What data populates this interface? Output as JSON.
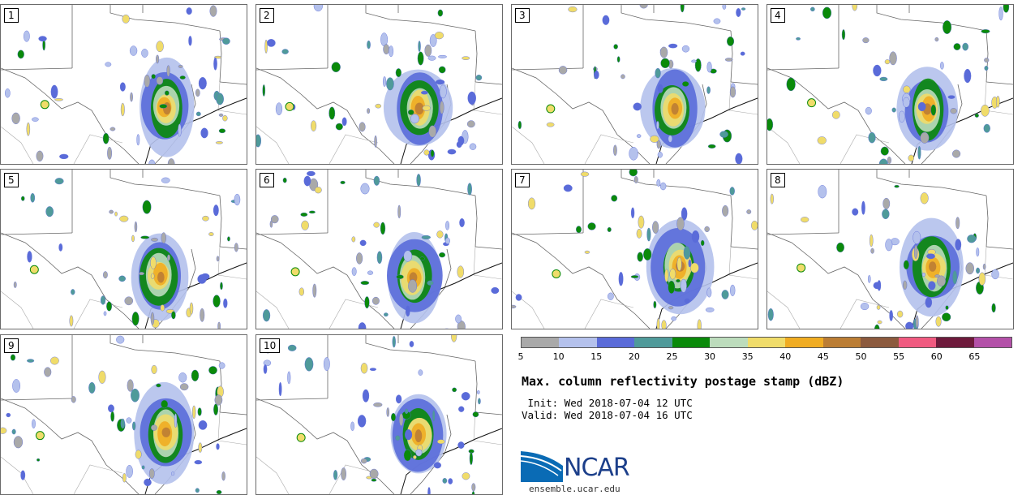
{
  "panels": [
    {
      "label": "1"
    },
    {
      "label": "2"
    },
    {
      "label": "3"
    },
    {
      "label": "4"
    },
    {
      "label": "5"
    },
    {
      "label": "6"
    },
    {
      "label": "7"
    },
    {
      "label": "8"
    },
    {
      "label": "9"
    },
    {
      "label": "10"
    }
  ],
  "colorbar": {
    "colors": [
      "#a9a9a9",
      "#b4c1ec",
      "#5a6bd9",
      "#4f9a9a",
      "#0a8a0a",
      "#bcdcbc",
      "#f0dc6a",
      "#f0ac22",
      "#bb7d34",
      "#8c5a3e",
      "#f05a80",
      "#6e1a3c",
      "#b350a8"
    ],
    "ticks": [
      "5",
      "10",
      "15",
      "20",
      "25",
      "30",
      "35",
      "40",
      "45",
      "50",
      "55",
      "60",
      "65"
    ]
  },
  "title": "Max. column reflectivity postage stamp (dBZ)",
  "init": " Init: Wed 2018-07-04 12 UTC",
  "valid": "Valid: Wed 2018-07-04 16 UTC",
  "logo": {
    "text": "NCAR",
    "url": "ensemble.ucar.edu"
  }
}
